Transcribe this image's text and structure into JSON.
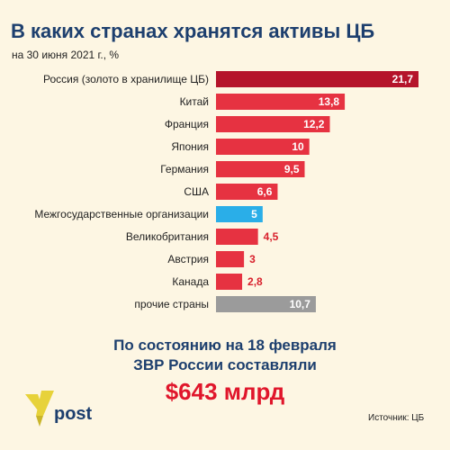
{
  "header": {
    "title": "В каких странах хранятся активы ЦБ",
    "subtitle": "на 30 июня 2021 г., %"
  },
  "colors": {
    "background": "#fdf6e3",
    "title": "#1d3f6e",
    "highlight": "#b5142b",
    "country": "#e63241",
    "organizations": "#2aaee8",
    "other": "#9b9b9b",
    "amount": "#e0162b",
    "logo_accent": "#e7d23a"
  },
  "chart_data": {
    "type": "bar",
    "orientation": "horizontal",
    "categories": [
      "Россия (золото в хранилище ЦБ)",
      "Китай",
      "Франция",
      "Япония",
      "Германия",
      "США",
      "Межгосударственные организации",
      "Великобритания",
      "Австрия",
      "Канада",
      "прочие страны"
    ],
    "values": [
      21.7,
      13.8,
      12.2,
      10,
      9.5,
      6.6,
      5,
      4.5,
      3,
      2.8,
      10.7
    ],
    "value_labels": [
      "21,7",
      "13,8",
      "12,2",
      "10",
      "9,5",
      "6,6",
      "5",
      "4,5",
      "3",
      "2,8",
      "10,7"
    ],
    "bar_colors": [
      "#b5142b",
      "#e63241",
      "#e63241",
      "#e63241",
      "#e63241",
      "#e63241",
      "#2aaee8",
      "#e63241",
      "#e63241",
      "#e63241",
      "#9b9b9b"
    ],
    "title": "В каких странах хранятся активы ЦБ",
    "xlabel": "",
    "ylabel": "",
    "xlim": [
      0,
      21.7
    ],
    "grid": false,
    "legend": false
  },
  "summary": {
    "line1": "По состоянию на 18 февраля",
    "line2": "ЗВР России составляли",
    "amount": "$643 млрд"
  },
  "footer": {
    "logo_text": "post",
    "source": "Источник: ЦБ"
  }
}
